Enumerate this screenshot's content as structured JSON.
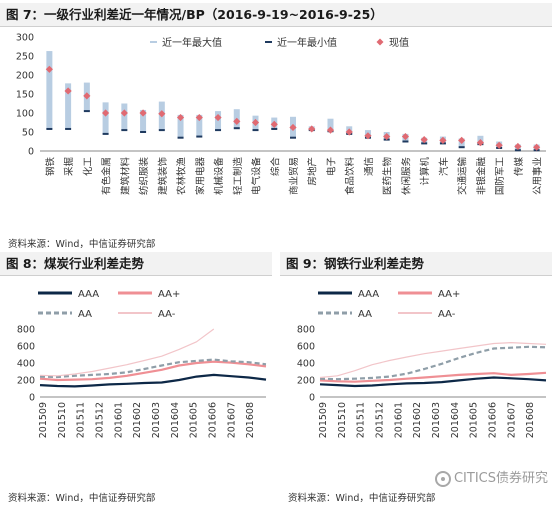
{
  "fig7": {
    "title": "图 7：一级行业利差近一年情况/BP（2016-9-19~2016-9-25）",
    "source": "资料来源：Wind，中信证券研究部"
  },
  "fig8": {
    "title": "图 8：煤炭行业利差走势",
    "source": "资料来源：Wind，中信证券研究部"
  },
  "fig9": {
    "title": "图 9：钢铁行业利差走势",
    "source": "资料来源：Wind，中信证券研究部"
  },
  "watermark": "CITICS债券研究",
  "colors": {
    "bar": "#b8cde2",
    "min": "#1f3a5f",
    "current": "#e06a72",
    "AAA": "#0d2847",
    "AAplus": "#ef8f94",
    "AA": "#8f9ea8",
    "AAminus": "#f2c5c9"
  },
  "chart_data": [
    {
      "type": "bar",
      "categories": [
        "钢铁",
        "采掘",
        "化工",
        "有色金属",
        "建筑材料",
        "纺织服装",
        "建筑装饰",
        "农林牧渔",
        "家用电器",
        "机械设备",
        "轻工制造",
        "电气设备",
        "综合",
        "商业贸易",
        "房地产",
        "电子",
        "食品饮料",
        "通信",
        "医药生物",
        "休闲服务",
        "计算机",
        "汽车",
        "交通运输",
        "非银金融",
        "国防军工",
        "传媒",
        "公用事业"
      ],
      "series": [
        {
          "name": "近一年最大值",
          "values": [
            263,
            178,
            180,
            128,
            125,
            108,
            130,
            95,
            95,
            105,
            110,
            93,
            88,
            90,
            65,
            85,
            65,
            55,
            50,
            45,
            35,
            38,
            33,
            40,
            25,
            17,
            17
          ]
        },
        {
          "name": "近一年最小值",
          "values": [
            58,
            58,
            105,
            45,
            55,
            50,
            55,
            35,
            38,
            55,
            60,
            55,
            58,
            35,
            55,
            52,
            45,
            35,
            30,
            25,
            20,
            20,
            10,
            18,
            8,
            2,
            2
          ]
        },
        {
          "name": "现值",
          "values": [
            215,
            158,
            145,
            100,
            100,
            100,
            98,
            88,
            88,
            88,
            78,
            75,
            70,
            62,
            58,
            55,
            50,
            40,
            38,
            38,
            30,
            28,
            28,
            22,
            15,
            12,
            10
          ]
        }
      ],
      "ylim": [
        0,
        300
      ],
      "yticks": [
        0,
        50,
        100,
        150,
        200,
        250,
        300
      ],
      "legend_position": "top",
      "grid": false
    },
    {
      "type": "line",
      "x_ticks": [
        "201509",
        "201510",
        "201511",
        "201512",
        "201601",
        "201602",
        "201603",
        "201604",
        "201605",
        "201606",
        "201607",
        "201608"
      ],
      "ylim": [
        0,
        800
      ],
      "yticks": [
        0,
        200,
        400,
        600,
        800
      ],
      "legend_position": "top",
      "series": [
        {
          "name": "AAA",
          "values": [
            140,
            130,
            125,
            135,
            148,
            155,
            165,
            170,
            200,
            240,
            260,
            245,
            230,
            205
          ]
        },
        {
          "name": "AA+",
          "values": [
            215,
            200,
            205,
            210,
            225,
            250,
            285,
            320,
            370,
            400,
            415,
            405,
            385,
            360
          ]
        },
        {
          "name": "AA",
          "values": [
            240,
            235,
            250,
            260,
            270,
            290,
            330,
            370,
            410,
            425,
            440,
            420,
            410,
            385
          ]
        },
        {
          "name": "AA-",
          "values": [
            255,
            250,
            270,
            300,
            340,
            380,
            430,
            480,
            560,
            650,
            800,
            null,
            null,
            null
          ]
        }
      ]
    },
    {
      "type": "line",
      "x_ticks": [
        "201509",
        "201510",
        "201511",
        "201512",
        "201601",
        "201602",
        "201603",
        "201604",
        "201605",
        "201606",
        "201607",
        "201608"
      ],
      "ylim": [
        0,
        800
      ],
      "yticks": [
        0,
        200,
        400,
        600,
        800
      ],
      "legend_position": "top",
      "series": [
        {
          "name": "AAA",
          "values": [
            150,
            140,
            130,
            135,
            150,
            160,
            165,
            175,
            195,
            215,
            230,
            220,
            210,
            195
          ]
        },
        {
          "name": "AA+",
          "values": [
            195,
            185,
            180,
            190,
            200,
            215,
            230,
            245,
            260,
            270,
            280,
            260,
            270,
            285
          ]
        },
        {
          "name": "AA",
          "values": [
            215,
            210,
            215,
            225,
            240,
            275,
            330,
            390,
            460,
            520,
            570,
            580,
            590,
            585
          ]
        },
        {
          "name": "AA-",
          "values": [
            230,
            250,
            310,
            380,
            430,
            470,
            510,
            540,
            570,
            600,
            630,
            640,
            630,
            620
          ]
        }
      ]
    }
  ]
}
